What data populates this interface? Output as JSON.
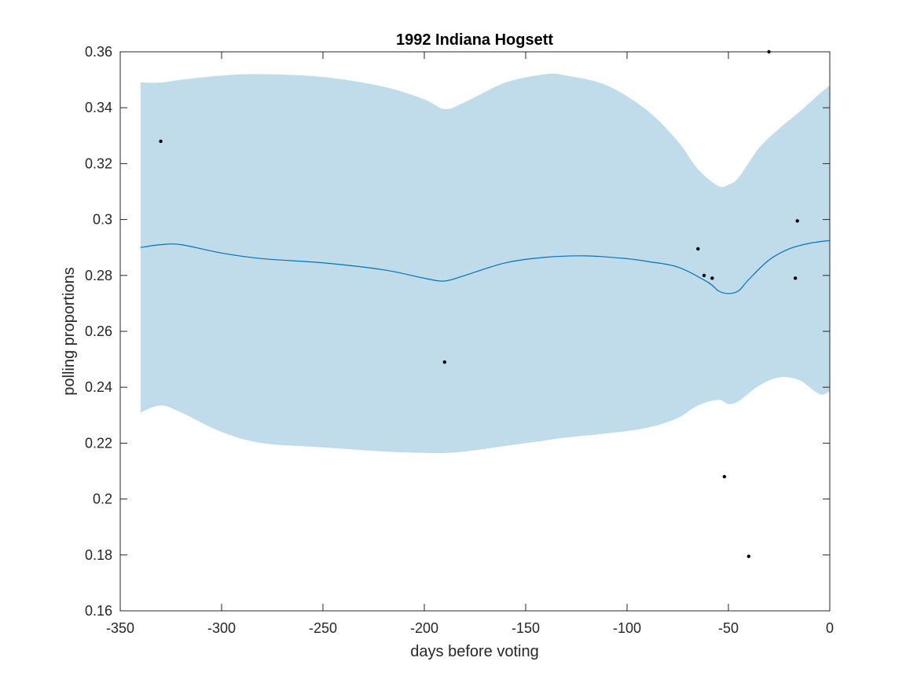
{
  "chart_data": {
    "type": "line",
    "title": "1992 Indiana Hogsett",
    "xlabel": "days before voting",
    "ylabel": "polling proportions",
    "xlim": [
      -350,
      0
    ],
    "ylim": [
      0.16,
      0.36
    ],
    "x_ticks": [
      -350,
      -300,
      -250,
      -200,
      -150,
      -100,
      -50,
      0
    ],
    "y_ticks": [
      0.16,
      0.18,
      0.2,
      0.22,
      0.24,
      0.26,
      0.28,
      0.3,
      0.32,
      0.34,
      0.36
    ],
    "x_tick_labels": [
      "-350",
      "-300",
      "-250",
      "-200",
      "-150",
      "-100",
      "-50",
      "0"
    ],
    "y_tick_labels": [
      "0.16",
      "0.18",
      "0.2",
      "0.22",
      "0.24",
      "0.26",
      "0.28",
      "0.3",
      "0.32",
      "0.34",
      "0.36"
    ],
    "grid": false,
    "colors": {
      "band": "#c0dcea",
      "line": "#0072bd",
      "points": "#000000",
      "axis": "#262626"
    },
    "band": {
      "x": [
        -340,
        -330,
        -320,
        -300,
        -280,
        -250,
        -220,
        -200,
        -190,
        -180,
        -160,
        -140,
        -130,
        -110,
        -90,
        -75,
        -65,
        -55,
        -50,
        -45,
        -35,
        -25,
        -15,
        -5,
        0
      ],
      "upper": [
        0.349,
        0.349,
        0.35,
        0.3515,
        0.352,
        0.351,
        0.3475,
        0.343,
        0.3395,
        0.342,
        0.349,
        0.352,
        0.3515,
        0.348,
        0.339,
        0.328,
        0.318,
        0.312,
        0.3125,
        0.315,
        0.3255,
        0.3325,
        0.3385,
        0.345,
        0.348
      ],
      "lower": [
        0.231,
        0.2335,
        0.231,
        0.224,
        0.22,
        0.2185,
        0.217,
        0.2165,
        0.2165,
        0.217,
        0.219,
        0.221,
        0.222,
        0.2235,
        0.2255,
        0.229,
        0.2335,
        0.2355,
        0.234,
        0.235,
        0.2405,
        0.2435,
        0.2425,
        0.2375,
        0.2385
      ]
    },
    "series": [
      {
        "x": [
          -340,
          -330,
          -320,
          -300,
          -280,
          -250,
          -220,
          -200,
          -190,
          -180,
          -160,
          -140,
          -120,
          -100,
          -90,
          -75,
          -60,
          -55,
          -50,
          -45,
          -40,
          -30,
          -20,
          -10,
          0
        ],
        "values": [
          0.29,
          0.291,
          0.291,
          0.288,
          0.286,
          0.2845,
          0.282,
          0.279,
          0.278,
          0.28,
          0.2845,
          0.2865,
          0.287,
          0.286,
          0.285,
          0.283,
          0.2775,
          0.2745,
          0.2735,
          0.2745,
          0.2785,
          0.2855,
          0.2895,
          0.2915,
          0.2925
        ]
      }
    ],
    "points": {
      "x": [
        -330,
        -190,
        -65,
        -62,
        -58,
        -52,
        -40,
        -30,
        -16,
        -17
      ],
      "y": [
        0.328,
        0.249,
        0.2895,
        0.28,
        0.279,
        0.208,
        0.1795,
        0.36,
        0.2995,
        0.279
      ]
    }
  }
}
